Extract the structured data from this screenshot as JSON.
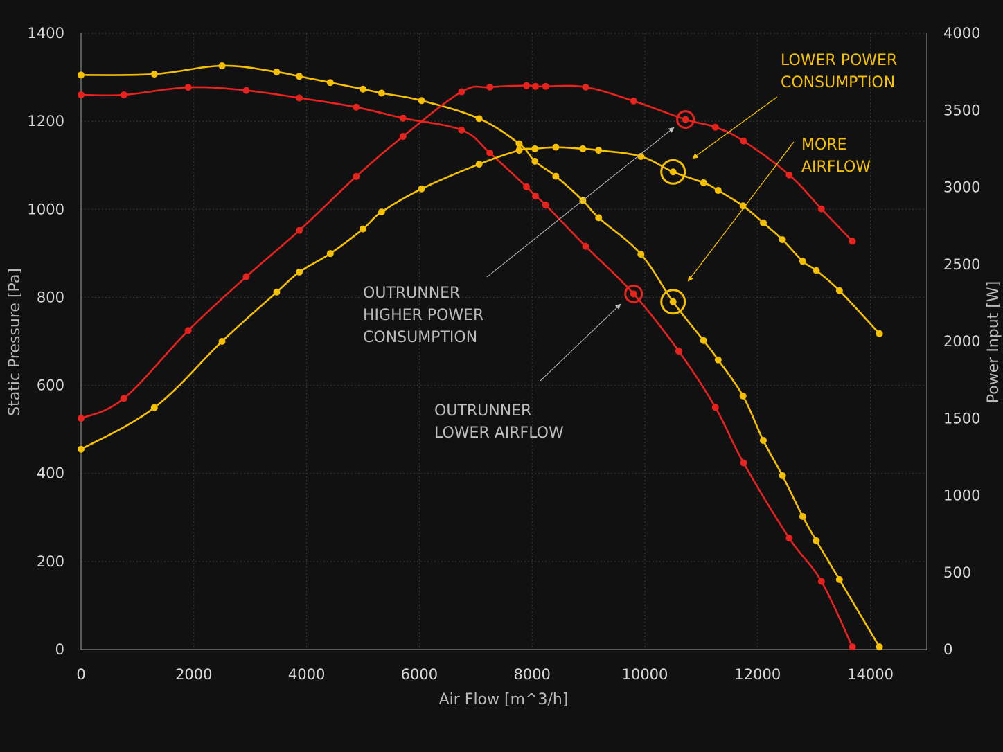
{
  "chart_data": {
    "type": "line",
    "xlabel": "Air Flow [m^3/h]",
    "ylabel": "Static Pressure [Pa]",
    "y2label": "Power Input [W]",
    "xlim": [
      0,
      15000
    ],
    "ylim": [
      0,
      1400
    ],
    "y2lim": [
      0,
      4000
    ],
    "xticks": [
      "0",
      "2000",
      "4000",
      "6000",
      "8000",
      "10000",
      "12000",
      "14000"
    ],
    "yticks": [
      "0",
      "200",
      "400",
      "600",
      "800",
      "1000",
      "1200",
      "1400"
    ],
    "y2ticks": [
      "0",
      "500",
      "1000",
      "1500",
      "2000",
      "2500",
      "3000",
      "3500",
      "4000"
    ],
    "grid": true,
    "colors": {
      "red": "#e8221c",
      "yellow": "#f5c000",
      "grey_annotation": "#bcbcbc",
      "background": "#111111"
    },
    "series": [
      {
        "axis": "left",
        "color": "#e8221c",
        "points": [
          [
            0,
            1260
          ],
          [
            760,
            1260
          ],
          [
            1900,
            1277
          ],
          [
            2930,
            1270
          ],
          [
            3870,
            1253
          ],
          [
            4880,
            1232
          ],
          [
            5710,
            1207
          ],
          [
            6750,
            1180
          ],
          [
            7250,
            1128
          ],
          [
            7900,
            1051
          ],
          [
            8060,
            1030
          ],
          [
            8240,
            1010
          ],
          [
            8950,
            916
          ],
          [
            9800,
            808
          ],
          [
            10600,
            678
          ],
          [
            11250,
            550
          ],
          [
            11750,
            424
          ],
          [
            12560,
            253
          ],
          [
            13130,
            155
          ],
          [
            13680,
            6
          ]
        ]
      },
      {
        "axis": "left",
        "color": "#f5c000",
        "points": [
          [
            0,
            1305
          ],
          [
            1300,
            1307
          ],
          [
            2500,
            1326
          ],
          [
            3470,
            1312
          ],
          [
            3870,
            1302
          ],
          [
            4420,
            1288
          ],
          [
            5000,
            1273
          ],
          [
            5330,
            1264
          ],
          [
            6040,
            1247
          ],
          [
            7060,
            1206
          ],
          [
            7770,
            1149
          ],
          [
            8050,
            1109
          ],
          [
            8420,
            1075
          ],
          [
            8900,
            1020
          ],
          [
            9180,
            981
          ],
          [
            9930,
            898
          ],
          [
            10500,
            790
          ],
          [
            11040,
            702
          ],
          [
            11300,
            658
          ],
          [
            11740,
            576
          ],
          [
            12100,
            475
          ],
          [
            12440,
            395
          ],
          [
            12800,
            302
          ],
          [
            13040,
            247
          ],
          [
            13450,
            159
          ],
          [
            14160,
            6
          ]
        ]
      },
      {
        "axis": "right",
        "color": "#e8221c",
        "points": [
          [
            0,
            1500
          ],
          [
            760,
            1630
          ],
          [
            1900,
            2070
          ],
          [
            2930,
            2420
          ],
          [
            3870,
            2720
          ],
          [
            4880,
            3070
          ],
          [
            5710,
            3330
          ],
          [
            6750,
            3620
          ],
          [
            7250,
            3650
          ],
          [
            7900,
            3660
          ],
          [
            8060,
            3655
          ],
          [
            8240,
            3655
          ],
          [
            8950,
            3650
          ],
          [
            9800,
            3560
          ],
          [
            10720,
            3440
          ],
          [
            11250,
            3390
          ],
          [
            11750,
            3300
          ],
          [
            12560,
            3080
          ],
          [
            13130,
            2860
          ],
          [
            13680,
            2650
          ]
        ]
      },
      {
        "axis": "right",
        "color": "#f5c000",
        "points": [
          [
            0,
            1300
          ],
          [
            1300,
            1570
          ],
          [
            2500,
            2000
          ],
          [
            3470,
            2320
          ],
          [
            3870,
            2450
          ],
          [
            4420,
            2570
          ],
          [
            5000,
            2730
          ],
          [
            5330,
            2840
          ],
          [
            6040,
            2990
          ],
          [
            7060,
            3150
          ],
          [
            7770,
            3240
          ],
          [
            8050,
            3250
          ],
          [
            8420,
            3260
          ],
          [
            8900,
            3250
          ],
          [
            9180,
            3240
          ],
          [
            9930,
            3200
          ],
          [
            10500,
            3100
          ],
          [
            11040,
            3030
          ],
          [
            11300,
            2980
          ],
          [
            11740,
            2880
          ],
          [
            12100,
            2770
          ],
          [
            12440,
            2660
          ],
          [
            12800,
            2520
          ],
          [
            13040,
            2460
          ],
          [
            13450,
            2330
          ],
          [
            14160,
            2050
          ]
        ]
      }
    ],
    "highlights": [
      {
        "color": "#e8221c",
        "axis": "right",
        "x": 10720,
        "y": 3440
      },
      {
        "color": "#f5c000",
        "axis": "right",
        "x": 10500,
        "y": 3100
      },
      {
        "color": "#e8221c",
        "axis": "left",
        "x": 9800,
        "y": 808
      },
      {
        "color": "#f5c000",
        "axis": "left",
        "x": 10500,
        "y": 790
      }
    ],
    "annotations": [
      {
        "lines": [
          "LOWER POWER",
          "CONSUMPTION"
        ],
        "color": "#f5c000"
      },
      {
        "lines": [
          "MORE",
          "AIRFLOW"
        ],
        "color": "#f5c000"
      },
      {
        "lines": [
          "OUTRUNNER",
          "HIGHER POWER",
          "CONSUMPTION"
        ],
        "color": "#bcbcbc"
      },
      {
        "lines": [
          "OUTRUNNER",
          "LOWER AIRFLOW"
        ],
        "color": "#bcbcbc"
      }
    ]
  }
}
